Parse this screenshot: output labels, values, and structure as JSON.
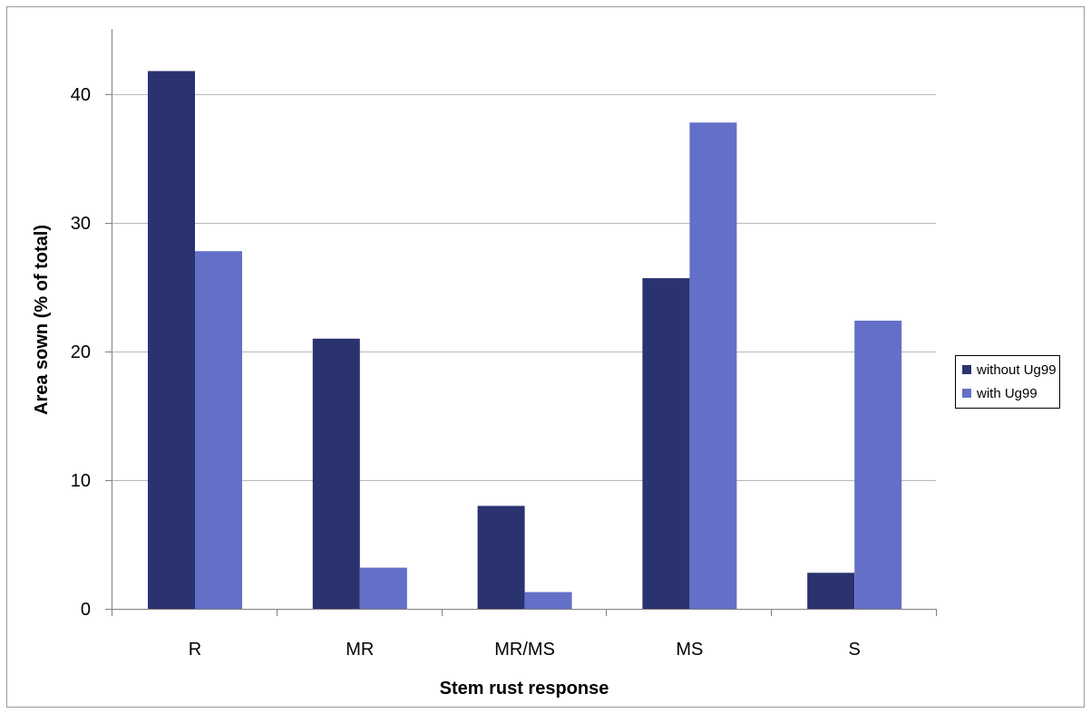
{
  "chart_data": {
    "type": "bar",
    "categories": [
      "R",
      "MR",
      "MR/MS",
      "MS",
      "S"
    ],
    "series": [
      {
        "name": "without Ug99",
        "color": "#2b3270",
        "values": [
          41.8,
          21.0,
          8.0,
          25.7,
          2.8
        ]
      },
      {
        "name": "with Ug99",
        "color": "#6470c8",
        "values": [
          27.8,
          3.2,
          1.3,
          37.8,
          22.4
        ]
      }
    ],
    "xlabel": "Stem rust response",
    "ylabel": "Area sown (% of total)",
    "ylim": [
      0,
      40
    ],
    "yticks": [
      0,
      10,
      20,
      30,
      40
    ],
    "grid": true,
    "gridline_color": "#b8b8b8",
    "legend_position": "right"
  }
}
